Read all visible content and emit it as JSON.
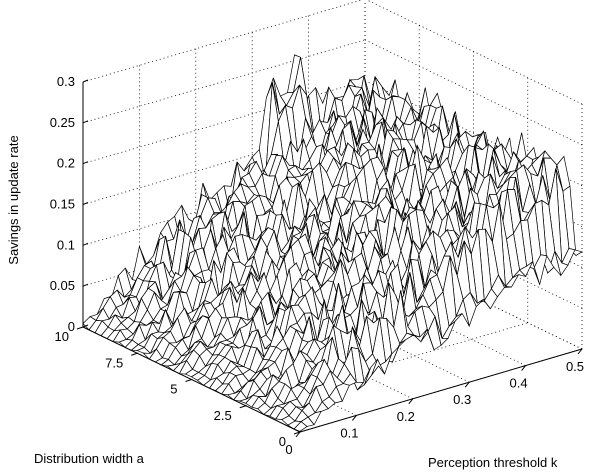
{
  "chart_data": {
    "type": "surface",
    "title": "",
    "xlabel": "Perception threshold k",
    "ylabel": "Distribution width a",
    "zlabel": "Savings in update rate",
    "xlim": [
      0,
      0.5
    ],
    "ylim": [
      0,
      10
    ],
    "zlim": [
      0,
      0.3
    ],
    "x_ticks": [
      "0",
      "0.1",
      "0.2",
      "0.3",
      "0.4",
      "0.5"
    ],
    "y_ticks": [
      "0",
      "2.5",
      "5",
      "7.5",
      "10"
    ],
    "z_ticks": [
      "0",
      "0.05",
      "0.1",
      "0.15",
      "0.2",
      "0.25",
      "0.3"
    ],
    "grid": true,
    "surface": {
      "description_values": "noisy surface rising with k, roughly independent of a",
      "k_samples": [
        0,
        0.05,
        0.1,
        0.15,
        0.2,
        0.25,
        0.3,
        0.35,
        0.4,
        0.45,
        0.5
      ],
      "mean_savings_at_k": [
        0.0,
        0.03,
        0.06,
        0.08,
        0.1,
        0.12,
        0.14,
        0.16,
        0.18,
        0.19,
        0.2
      ],
      "peak_value": 0.28,
      "peak_location": {
        "k": 0.35,
        "a": 10
      }
    }
  }
}
